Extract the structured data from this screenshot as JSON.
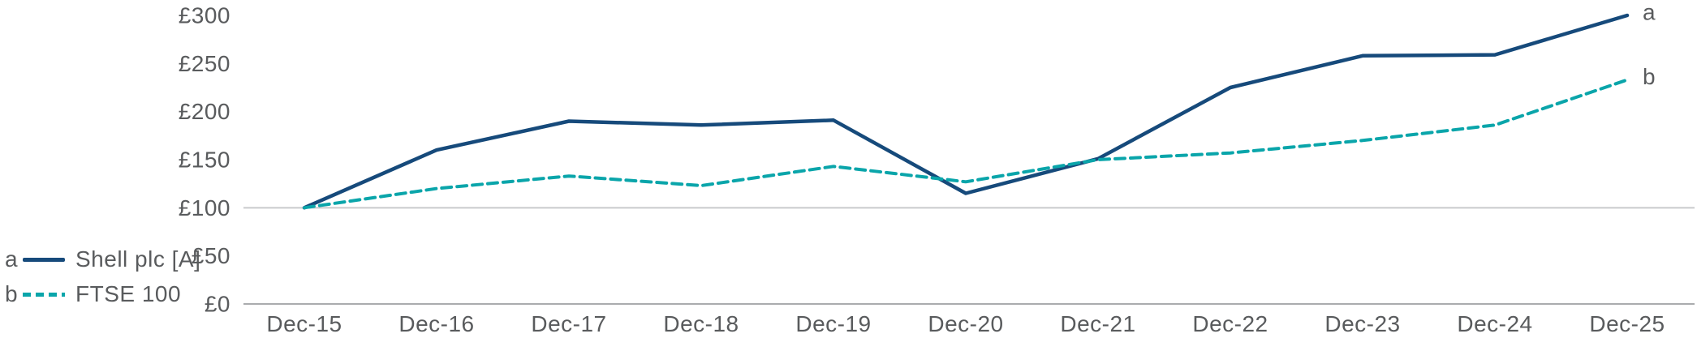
{
  "chart_data": {
    "type": "line",
    "title": "",
    "xlabel": "",
    "ylabel": "",
    "x": [
      "Dec-15",
      "Dec-16",
      "Dec-17",
      "Dec-18",
      "Dec-19",
      "Dec-20",
      "Dec-21",
      "Dec-22",
      "Dec-23",
      "Dec-24",
      "Dec-25"
    ],
    "series": [
      {
        "name": "Shell plc [A]",
        "letter": "a",
        "style": "solid",
        "color": "#164a7b",
        "values": [
          100,
          160,
          190,
          186,
          191,
          115,
          151,
          225,
          258,
          259,
          300
        ]
      },
      {
        "name": "FTSE 100",
        "letter": "b",
        "style": "dashed",
        "color": "#0aa5aa",
        "values": [
          100,
          120,
          133,
          123,
          143,
          127,
          150,
          157,
          170,
          186,
          233
        ]
      }
    ],
    "y_ticks": [
      {
        "label": "£0",
        "value": 0
      },
      {
        "label": "£50",
        "value": 50
      },
      {
        "label": "£100",
        "value": 100
      },
      {
        "label": "£150",
        "value": 150
      },
      {
        "label": "£200",
        "value": 200
      },
      {
        "label": "£250",
        "value": 250
      },
      {
        "label": "£300",
        "value": 300
      }
    ],
    "ylim": [
      0,
      300
    ],
    "currency_prefix": "£",
    "gridlines_at": [
      0,
      100
    ],
    "legend_position": "bottom-left",
    "colors": {
      "axis_text": "#595b5d",
      "gridline_100": "#c9cacc",
      "baseline_0": "#aaacae",
      "background": "#ffffff"
    }
  }
}
